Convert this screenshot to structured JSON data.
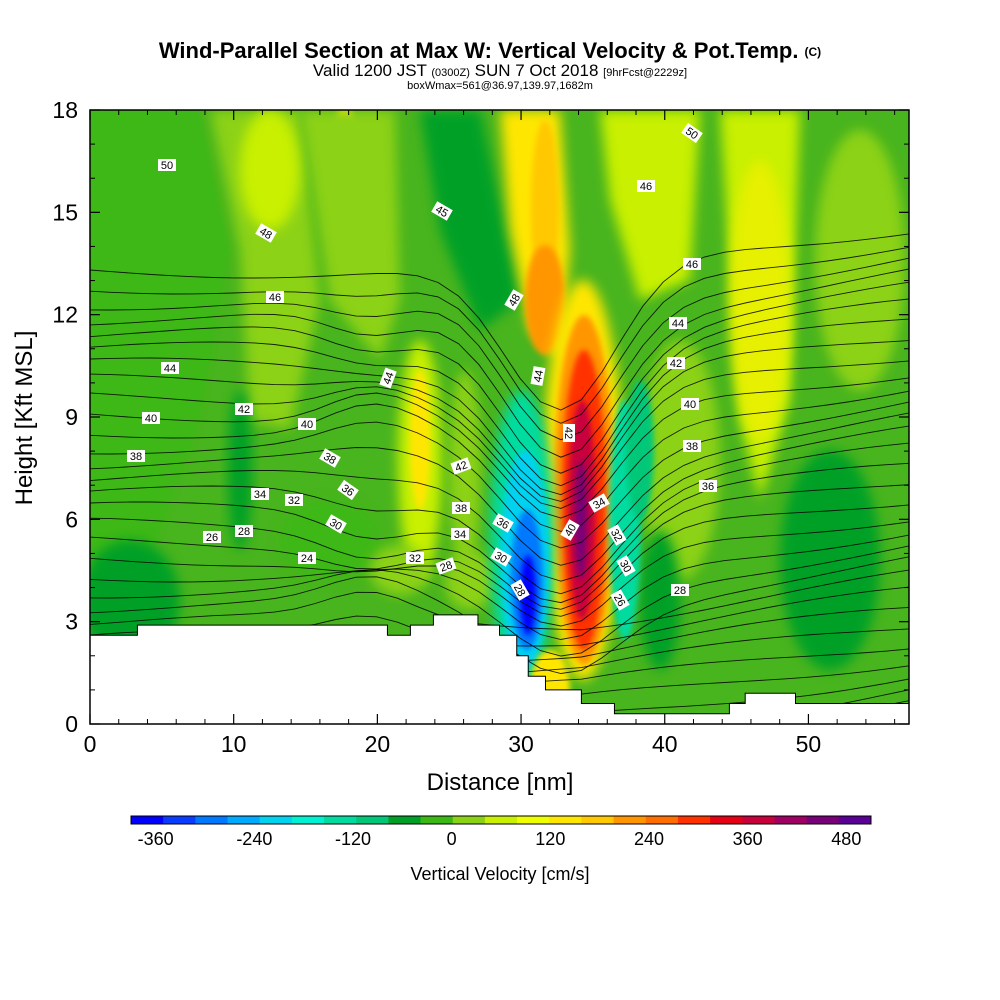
{
  "chart_data": {
    "type": "heatmap",
    "title": "Wind-Parallel Section at Max W: Vertical Velocity & Pot.Temp.",
    "title_mark": "(C)",
    "subtitle_parts": [
      "Valid 1200 JST",
      "(0300Z)",
      "SUN 7 Oct 2018",
      "[9hrFcst@2229z]"
    ],
    "subtitle2": "boxWmax=561@36.97,139.97,1682m",
    "xlabel": "Distance [nm]",
    "ylabel": "Height [Kft MSL]",
    "xlim": [
      0,
      57
    ],
    "ylim": [
      0,
      18
    ],
    "x_ticks": [
      "0",
      "10",
      "20",
      "30",
      "40",
      "50"
    ],
    "y_ticks": [
      "0",
      "3",
      "6",
      "9",
      "12",
      "15",
      "18"
    ],
    "colorbar": {
      "label": "Vertical Velocity [cm/s]",
      "tick_labels": [
        "-360",
        "-240",
        "-120",
        "0",
        "120",
        "240",
        "360",
        "480"
      ],
      "tick_values": [
        -360,
        -240,
        -120,
        0,
        120,
        240,
        360,
        480
      ],
      "range": [
        -390,
        510
      ],
      "colors": [
        "#0000ff",
        "#0a3cff",
        "#0078ff",
        "#00aaff",
        "#00d2f0",
        "#00f0d2",
        "#00dca0",
        "#00c878",
        "#00a028",
        "#3cb814",
        "#8cd214",
        "#c8f000",
        "#f0ff00",
        "#ffe600",
        "#ffc800",
        "#ff9600",
        "#ff6e00",
        "#ff3200",
        "#e60014",
        "#c8003c",
        "#a00064",
        "#780078",
        "#5a0096"
      ]
    },
    "contour_variable": "Pot.Temp.",
    "contour_labels": [
      "50",
      "45",
      "48",
      "46",
      "44",
      "42",
      "40",
      "38",
      "36",
      "34",
      "32",
      "30",
      "28",
      "26",
      "24"
    ],
    "terrain_height_kft": [
      [
        0,
        2.6
      ],
      [
        3.3,
        2.9
      ],
      [
        20.7,
        2.6
      ],
      [
        22.3,
        2.9
      ],
      [
        23.9,
        3.2
      ],
      [
        27.0,
        2.9
      ],
      [
        28.5,
        2.6
      ],
      [
        29.7,
        2.0
      ],
      [
        30.5,
        1.4
      ],
      [
        31.7,
        1.0
      ],
      [
        33.1,
        1.0
      ],
      [
        34.2,
        0.6
      ],
      [
        36.5,
        0.3
      ],
      [
        43.1,
        0.3
      ],
      [
        44.5,
        0.6
      ],
      [
        45.6,
        0.9
      ],
      [
        49.1,
        0.6
      ],
      [
        57,
        0.6
      ]
    ],
    "w_features_cms": [
      {
        "x": 34.6,
        "z": 7.0,
        "w": 490
      },
      {
        "x": 30.0,
        "z": 4.5,
        "w": -370
      },
      {
        "x": 32.4,
        "z": 12.5,
        "w": 160
      },
      {
        "x": 25.5,
        "z": 9.0,
        "w": 100
      }
    ]
  }
}
